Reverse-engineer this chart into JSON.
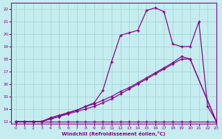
{
  "xlabel": "Windchill (Refroidissement éolien,°C)",
  "xlim": [
    -0.5,
    23
  ],
  "ylim": [
    12.8,
    22.5
  ],
  "yticks": [
    13,
    14,
    15,
    16,
    17,
    18,
    19,
    20,
    21,
    22
  ],
  "xticks": [
    0,
    1,
    2,
    3,
    4,
    5,
    6,
    7,
    8,
    9,
    10,
    11,
    12,
    13,
    14,
    15,
    16,
    17,
    18,
    19,
    20,
    21,
    22,
    23
  ],
  "background_color": "#c5ecee",
  "grid_color": "#a0d0d4",
  "line_color": "#880088",
  "flat_x": [
    0,
    1,
    2,
    3,
    4,
    5,
    6,
    7,
    8,
    9,
    10,
    11,
    12,
    13,
    14,
    15,
    16,
    17,
    18,
    19,
    20,
    22,
    23
  ],
  "flat_y": [
    13,
    13,
    13,
    13,
    13,
    13,
    13,
    13,
    13,
    13,
    13,
    13,
    13,
    13,
    13,
    13,
    13,
    13,
    13,
    13,
    13,
    13,
    13
  ],
  "diag1_x": [
    0,
    1,
    2,
    3,
    4,
    5,
    6,
    7,
    8,
    9,
    10,
    11,
    12,
    13,
    14,
    15,
    16,
    17,
    18,
    19,
    20,
    23
  ],
  "diag1_y": [
    13,
    13,
    13,
    13,
    13.3,
    13.5,
    13.7,
    13.9,
    14.2,
    14.4,
    14.7,
    15.0,
    15.4,
    15.7,
    16.1,
    16.5,
    16.9,
    17.3,
    17.7,
    18.2,
    18.0,
    13
  ],
  "diag2_x": [
    0,
    1,
    2,
    3,
    4,
    5,
    6,
    7,
    8,
    9,
    10,
    11,
    12,
    13,
    14,
    15,
    16,
    17,
    18,
    19,
    20,
    23
  ],
  "diag2_y": [
    13,
    13,
    13,
    13,
    13.2,
    13.4,
    13.6,
    13.8,
    14.0,
    14.2,
    14.5,
    14.8,
    15.2,
    15.6,
    16.0,
    16.4,
    16.8,
    17.2,
    17.6,
    18.0,
    18.0,
    13
  ],
  "curve_x": [
    0,
    1,
    2,
    3,
    4,
    5,
    6,
    7,
    8,
    9,
    10,
    11,
    12,
    13,
    14,
    15,
    16,
    17,
    18,
    19,
    20,
    21,
    22,
    23
  ],
  "curve_y": [
    13,
    13,
    13,
    13,
    13.2,
    13.4,
    13.7,
    13.9,
    14.2,
    14.5,
    15.5,
    17.8,
    19.9,
    20.1,
    20.3,
    21.9,
    22.1,
    21.8,
    19.2,
    19.0,
    19.0,
    21.0,
    14.2,
    13.0
  ]
}
